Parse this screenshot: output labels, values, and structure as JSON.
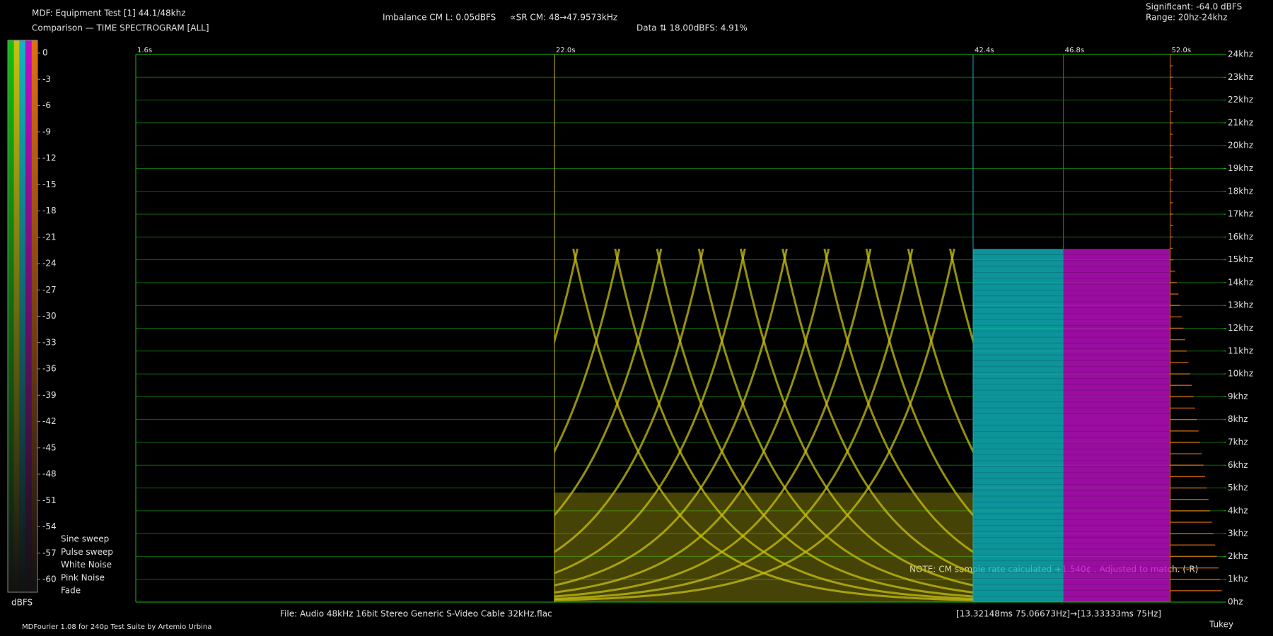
{
  "chart_data": {
    "type": "spectrogram",
    "title": "MDF: Equipment Test [1] 44.1/48khz",
    "subtitle": "Comparison — TIME SPECTROGRAM [ALL]",
    "annotations": [
      {
        "text": "Imbalance CM L: 0.05dBFS",
        "color": "#22b8c8"
      },
      {
        "text": "∝SR CM: 48→47.9573kHz",
        "color": "#d8c020"
      },
      {
        "text": "Data ⇅ 18.00dBFS: 4.91%",
        "color": "#22b8c8"
      },
      {
        "text": "Significant: -64.0 dBFS",
        "color": "#20c020"
      },
      {
        "text": "Range: 20hz-24khz",
        "color": "#d8c020"
      },
      {
        "text": "NOTE: CM sample rate calculated +1.540¢ . Adjusted to match. (-R)",
        "color": "#20c020"
      },
      {
        "text": "File: Audio   48kHz 16bit Stereo Generic S-Video Cable 32kHz.flac",
        "color": "#d8c020"
      },
      {
        "text": "[13.32148ms 75.06673Hz]→[13.33333ms 75Hz]",
        "color": "#d8c020"
      },
      {
        "text": "MDFourier 1.08 for 240p Test Suite by Artemio Urbina",
        "color": "#20c020"
      },
      {
        "text": "Tukey",
        "color": "#c8c8c8"
      }
    ],
    "series": [
      {
        "name": "Sine sweep",
        "color": "#10c010"
      },
      {
        "name": "Pulse sweep",
        "color": "#c8c010"
      },
      {
        "name": "White Noise",
        "color": "#10b8c0"
      },
      {
        "name": "Pink Noise",
        "color": "#c010c8"
      },
      {
        "name": "Fade",
        "color": "#e07010"
      }
    ],
    "xlim": [
      1.6,
      54.6
    ],
    "xticks": [
      {
        "value": 1.6,
        "label": "1.6s"
      },
      {
        "value": 22.0,
        "label": "22.0s"
      },
      {
        "value": 42.4,
        "label": "42.4s"
      },
      {
        "value": 46.8,
        "label": "46.8s"
      },
      {
        "value": 52.0,
        "label": "52.0s"
      }
    ],
    "ylim": [
      0,
      24
    ],
    "yticks": [
      {
        "value": 0,
        "label": "0hz"
      },
      {
        "value": 1,
        "label": "1khz"
      },
      {
        "value": 2,
        "label": "2khz"
      },
      {
        "value": 3,
        "label": "3khz"
      },
      {
        "value": 4,
        "label": "4khz"
      },
      {
        "value": 5,
        "label": "5khz"
      },
      {
        "value": 6,
        "label": "6khz"
      },
      {
        "value": 7,
        "label": "7khz"
      },
      {
        "value": 8,
        "label": "8khz"
      },
      {
        "value": 9,
        "label": "9khz"
      },
      {
        "value": 10,
        "label": "10khz"
      },
      {
        "value": 11,
        "label": "11khz"
      },
      {
        "value": 12,
        "label": "12khz"
      },
      {
        "value": 13,
        "label": "13khz"
      },
      {
        "value": 14,
        "label": "14khz"
      },
      {
        "value": 15,
        "label": "15khz"
      },
      {
        "value": 16,
        "label": "16khz"
      },
      {
        "value": 17,
        "label": "17khz"
      },
      {
        "value": 18,
        "label": "18khz"
      },
      {
        "value": 19,
        "label": "19khz"
      },
      {
        "value": 20,
        "label": "20khz"
      },
      {
        "value": 21,
        "label": "21khz"
      },
      {
        "value": 22,
        "label": "22khz"
      },
      {
        "value": 23,
        "label": "23khz"
      },
      {
        "value": 24,
        "label": "24khz"
      }
    ],
    "grid": true,
    "grid_color": "#0c6a0c",
    "colorbar": {
      "label": "dBFS",
      "lim": [
        0,
        -60
      ],
      "ticks": [
        0,
        -3,
        -6,
        -9,
        -12,
        -15,
        -18,
        -21,
        -24,
        -27,
        -30,
        -33,
        -36,
        -39,
        -42,
        -45,
        -48,
        -51,
        -54,
        -57,
        -60
      ]
    }
  }
}
